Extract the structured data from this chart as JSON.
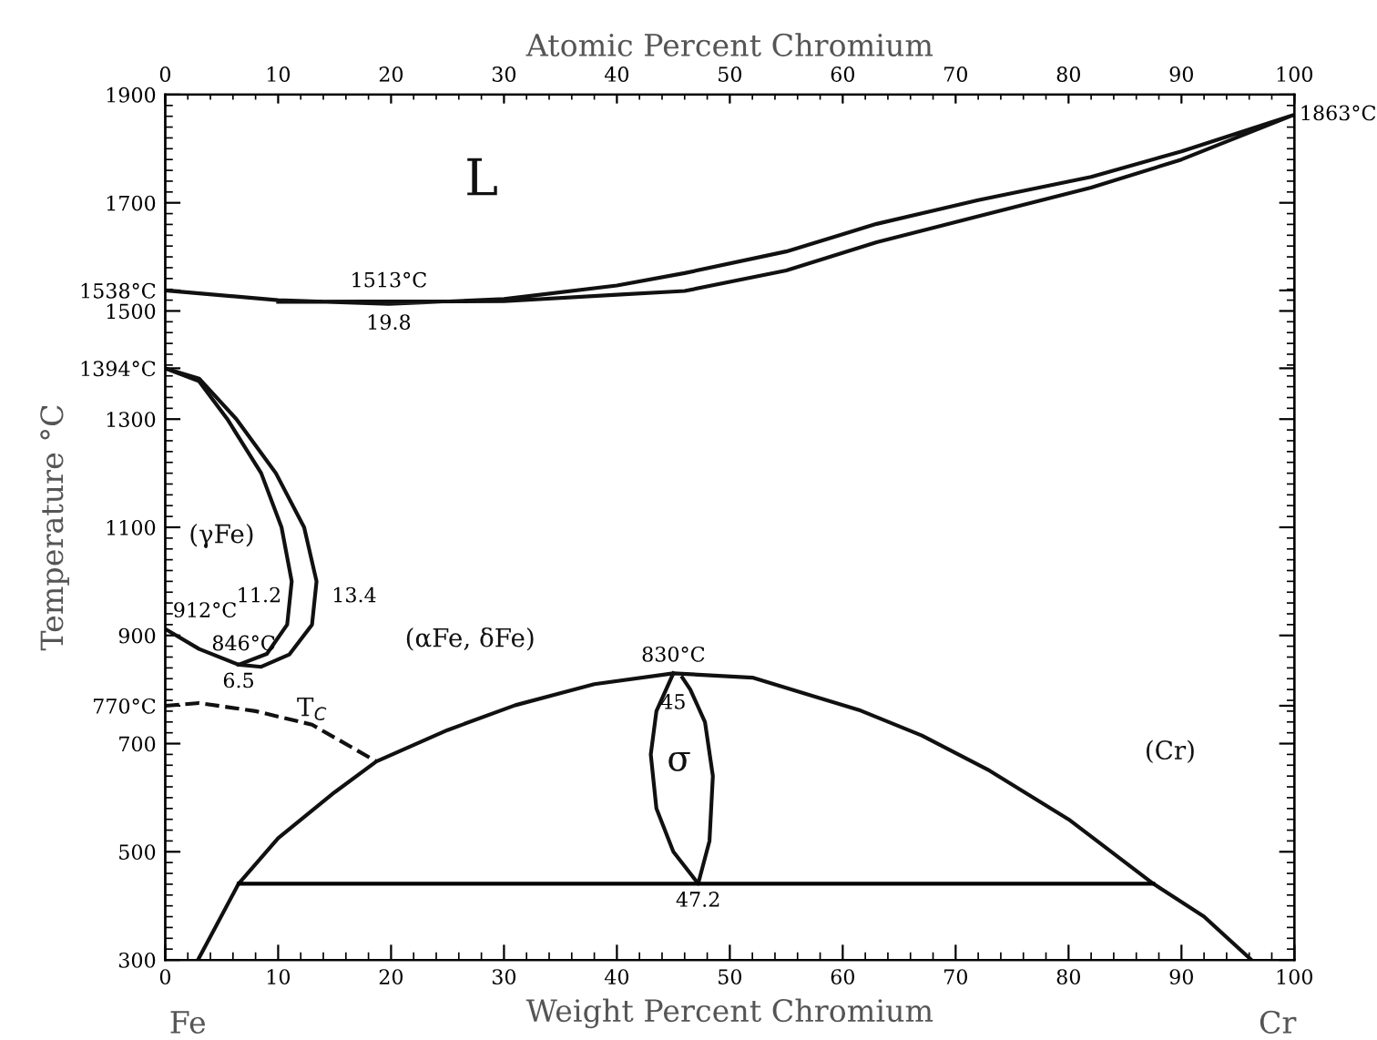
{
  "chart_data": {
    "type": "line",
    "xlabel": "Weight Percent Chromium",
    "x2label": "Atomic Percent Chromium",
    "ylabel": "Temperature °C",
    "xlim": [
      0,
      100
    ],
    "xticks": [
      0,
      10,
      20,
      30,
      40,
      50,
      60,
      70,
      80,
      90,
      100
    ],
    "x2lim": [
      0,
      100
    ],
    "x2ticks": [
      0,
      10,
      20,
      30,
      40,
      50,
      60,
      70,
      80,
      90,
      100
    ],
    "ylim": [
      300,
      1900
    ],
    "yticks": [
      300,
      500,
      700,
      {
        "value": 770,
        "label": "770°C"
      },
      900,
      1100,
      1300,
      {
        "value": 1394,
        "label": "1394°C"
      },
      1500,
      {
        "value": 1538,
        "label": "1538°C"
      },
      1700,
      1900
    ],
    "grid": false,
    "legend": false,
    "marker": "none",
    "series": [
      {
        "color": "#111111",
        "line_style": "solid",
        "x": [
          0,
          10,
          19.8,
          30,
          40,
          46,
          55,
          63,
          72,
          82,
          90,
          100,
          90,
          82,
          72,
          63,
          55,
          46,
          40,
          30,
          10
        ],
        "values": [
          1538,
          1520,
          1513,
          1522,
          1547,
          1570,
          1610,
          1661,
          1705,
          1748,
          1795,
          1863,
          1780,
          1728,
          1675,
          1627,
          1575,
          1537,
          1530,
          1518,
          1517
        ]
      },
      {
        "color": "#111111",
        "line_style": "solid",
        "x": [
          0,
          3,
          5.5,
          8.5,
          10.3,
          11.2,
          10.8,
          9,
          6.5,
          3,
          0
        ],
        "values": [
          1394,
          1370,
          1300,
          1200,
          1100,
          1000,
          920,
          866,
          846,
          875,
          912
        ]
      },
      {
        "color": "#111111",
        "line_style": "solid",
        "x": [
          0,
          3,
          6.3,
          9.8,
          12.3,
          13.4,
          13,
          11,
          8.5,
          6.5
        ],
        "values": [
          1394,
          1375,
          1300,
          1200,
          1100,
          1000,
          920,
          865,
          842,
          846
        ]
      },
      {
        "color": "#111111",
        "line_style": "dashed",
        "x": [
          0,
          3,
          8,
          13,
          18.7
        ],
        "values": [
          770,
          775,
          760,
          735,
          667
        ]
      },
      {
        "color": "#111111",
        "line_style": "solid",
        "x": [
          2.9,
          6.5,
          10,
          15,
          18.7,
          25,
          31,
          38,
          45,
          52,
          61.6,
          67,
          73,
          80,
          87.5,
          92,
          96.2
        ],
        "values": [
          300,
          441,
          525,
          610,
          667,
          725,
          771,
          810,
          830,
          822,
          761,
          715,
          650,
          560,
          441,
          380,
          300
        ]
      },
      {
        "color": "#111111",
        "line_style": "solid",
        "x": [
          45,
          43.5,
          43,
          43.5,
          45,
          47.2,
          48.2,
          48.5,
          47.8,
          46.5,
          45.8
        ],
        "values": [
          830,
          760,
          680,
          580,
          500,
          441,
          520,
          640,
          740,
          800,
          822
        ]
      },
      {
        "color": "#000000",
        "line_style": "solid",
        "x": [
          6.5,
          87.5
        ],
        "values": [
          441,
          441
        ]
      }
    ],
    "annotations": [
      "L",
      "(γFe)",
      "(αFe, δFe)",
      "T$_{C}$",
      "σ",
      "(Cr)",
      "Fe",
      "Cr",
      {
        "text": "1513°C",
        "x": 19.8,
        "y": 1513
      },
      {
        "text": "19.8",
        "x": 19.8,
        "y": 1513
      },
      {
        "text": "1863°C",
        "x": 100,
        "y": 1863
      },
      {
        "text": "11.2",
        "x": 11.2,
        "y": 1000
      },
      {
        "text": "13.4",
        "x": 13.4,
        "y": 1000
      },
      {
        "text": "846°C",
        "x": 6.5,
        "y": 846
      },
      {
        "text": "6.5",
        "x": 6.5,
        "y": 846
      },
      {
        "text": "830°C",
        "x": 45,
        "y": 830
      },
      {
        "text": "45",
        "x": 45,
        "y": 830
      },
      {
        "text": "47.2",
        "x": 47.2,
        "y": 441
      },
      {
        "text": "912°C",
        "x": 0,
        "y": 912
      }
    ]
  }
}
